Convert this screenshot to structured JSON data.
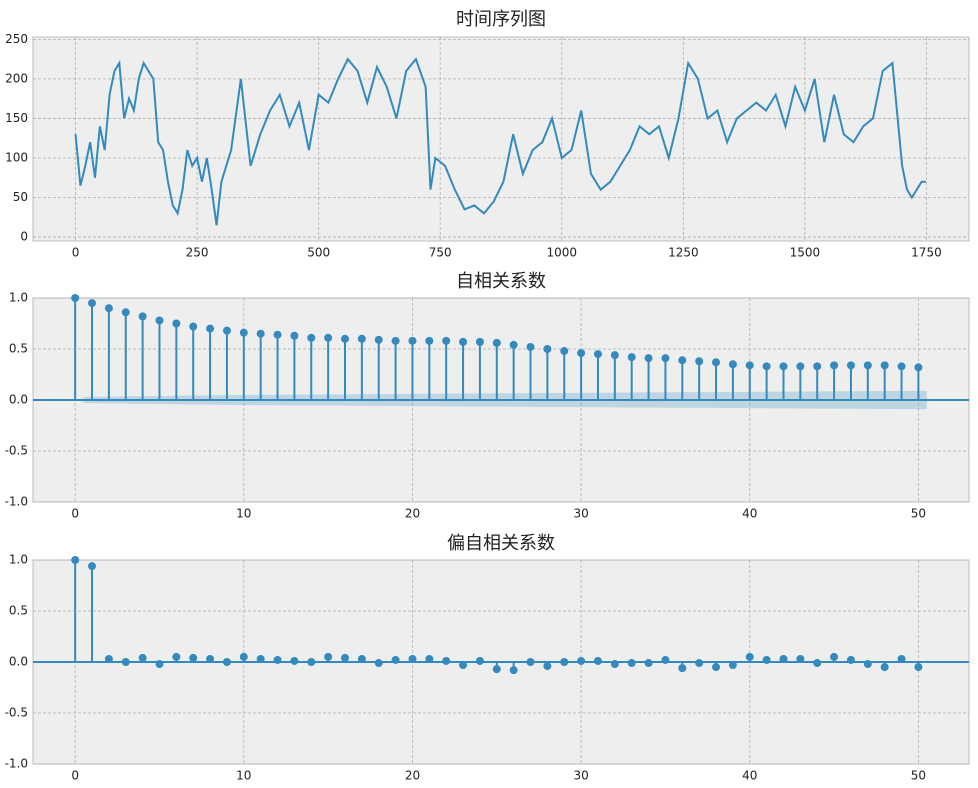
{
  "chart_data": [
    {
      "type": "line",
      "title": "时间序列图",
      "color": "#348abd",
      "grid": true,
      "x": [
        0,
        10,
        20,
        30,
        40,
        50,
        60,
        70,
        80,
        90,
        100,
        110,
        120,
        130,
        140,
        150,
        160,
        170,
        180,
        190,
        200,
        210,
        220,
        230,
        240,
        250,
        260,
        270,
        280,
        290,
        300,
        320,
        340,
        360,
        380,
        400,
        420,
        440,
        460,
        480,
        500,
        520,
        540,
        560,
        580,
        600,
        620,
        640,
        660,
        680,
        700,
        720,
        730,
        740,
        760,
        780,
        800,
        820,
        840,
        860,
        880,
        900,
        920,
        940,
        960,
        980,
        1000,
        1020,
        1040,
        1060,
        1080,
        1100,
        1120,
        1140,
        1160,
        1180,
        1200,
        1220,
        1240,
        1260,
        1280,
        1300,
        1320,
        1340,
        1360,
        1380,
        1400,
        1420,
        1440,
        1460,
        1480,
        1500,
        1520,
        1540,
        1560,
        1580,
        1600,
        1620,
        1640,
        1660,
        1680,
        1700,
        1710,
        1720,
        1740,
        1749
      ],
      "values": [
        130,
        65,
        90,
        120,
        75,
        140,
        110,
        180,
        210,
        220,
        150,
        175,
        160,
        200,
        220,
        210,
        200,
        120,
        110,
        70,
        40,
        30,
        60,
        110,
        90,
        100,
        70,
        100,
        60,
        15,
        70,
        110,
        200,
        90,
        130,
        160,
        180,
        140,
        170,
        110,
        180,
        170,
        200,
        225,
        210,
        170,
        215,
        190,
        150,
        210,
        225,
        190,
        60,
        100,
        90,
        60,
        35,
        40,
        30,
        45,
        70,
        130,
        80,
        110,
        120,
        150,
        100,
        110,
        160,
        80,
        60,
        70,
        90,
        110,
        140,
        130,
        140,
        100,
        150,
        220,
        200,
        150,
        160,
        120,
        150,
        160,
        170,
        160,
        180,
        140,
        190,
        160,
        200,
        120,
        180,
        130,
        120,
        140,
        150,
        210,
        220,
        90,
        60,
        50,
        70,
        70
      ],
      "xlim": [
        -87.5,
        1837.5
      ],
      "ylim": [
        -5,
        253
      ],
      "xticks": [
        0,
        250,
        500,
        750,
        1000,
        1250,
        1500,
        1750
      ],
      "yticks": [
        0,
        50,
        100,
        150,
        200,
        250
      ]
    },
    {
      "type": "stem",
      "title": "自相关系数",
      "color": "#348abd",
      "grid": true,
      "x": [
        0,
        1,
        2,
        3,
        4,
        5,
        6,
        7,
        8,
        9,
        10,
        11,
        12,
        13,
        14,
        15,
        16,
        17,
        18,
        19,
        20,
        21,
        22,
        23,
        24,
        25,
        26,
        27,
        28,
        29,
        30,
        31,
        32,
        33,
        34,
        35,
        36,
        37,
        38,
        39,
        40,
        41,
        42,
        43,
        44,
        45,
        46,
        47,
        48,
        49,
        50
      ],
      "values": [
        1.0,
        0.95,
        0.9,
        0.86,
        0.82,
        0.78,
        0.75,
        0.72,
        0.7,
        0.68,
        0.66,
        0.65,
        0.64,
        0.63,
        0.61,
        0.61,
        0.6,
        0.6,
        0.59,
        0.58,
        0.58,
        0.58,
        0.58,
        0.57,
        0.57,
        0.56,
        0.54,
        0.52,
        0.5,
        0.48,
        0.46,
        0.45,
        0.44,
        0.42,
        0.41,
        0.41,
        0.39,
        0.38,
        0.37,
        0.35,
        0.34,
        0.33,
        0.33,
        0.33,
        0.33,
        0.34,
        0.34,
        0.34,
        0.34,
        0.33,
        0.32
      ],
      "band_x": [
        0.5,
        10,
        20,
        30,
        40,
        50.5
      ],
      "band_upper": [
        0.03,
        0.05,
        0.06,
        0.07,
        0.08,
        0.09
      ],
      "band_lower": [
        -0.03,
        -0.05,
        -0.06,
        -0.07,
        -0.08,
        -0.09
      ],
      "xlim": [
        -2.5,
        53
      ],
      "ylim": [
        -1,
        1
      ],
      "xticks": [
        0,
        10,
        20,
        30,
        40,
        50
      ],
      "yticks": [
        {
          "value": 1,
          "label": "1.0"
        },
        {
          "value": 0.5,
          "label": "0.5"
        },
        {
          "value": 0,
          "label": "0.0"
        },
        {
          "value": -0.5,
          "label": "-0.5"
        },
        {
          "value": -1,
          "label": "-1.0"
        }
      ]
    },
    {
      "type": "stem",
      "title": "偏自相关系数",
      "color": "#348abd",
      "grid": true,
      "x": [
        0,
        1,
        2,
        3,
        4,
        5,
        6,
        7,
        8,
        9,
        10,
        11,
        12,
        13,
        14,
        15,
        16,
        17,
        18,
        19,
        20,
        21,
        22,
        23,
        24,
        25,
        26,
        27,
        28,
        29,
        30,
        31,
        32,
        33,
        34,
        35,
        36,
        37,
        38,
        39,
        40,
        41,
        42,
        43,
        44,
        45,
        46,
        47,
        48,
        49,
        50
      ],
      "values": [
        1.0,
        0.94,
        0.03,
        0.0,
        0.04,
        -0.02,
        0.05,
        0.04,
        0.03,
        0.0,
        0.05,
        0.03,
        0.02,
        0.01,
        0.0,
        0.05,
        0.04,
        0.03,
        -0.01,
        0.02,
        0.03,
        0.03,
        0.01,
        -0.03,
        0.01,
        -0.07,
        -0.08,
        0.0,
        -0.04,
        0.0,
        0.01,
        0.01,
        -0.02,
        -0.01,
        -0.01,
        0.02,
        -0.06,
        -0.01,
        -0.05,
        -0.03,
        0.05,
        0.02,
        0.03,
        0.03,
        -0.01,
        0.05,
        0.02,
        -0.02,
        -0.05,
        0.03,
        -0.05
      ],
      "xlim": [
        -2.5,
        53
      ],
      "ylim": [
        -1,
        1
      ],
      "xticks": [
        0,
        10,
        20,
        30,
        40,
        50
      ],
      "yticks": [
        {
          "value": 1,
          "label": "1.0"
        },
        {
          "value": 0.5,
          "label": "0.5"
        },
        {
          "value": 0,
          "label": "0.0"
        },
        {
          "value": -0.5,
          "label": "-0.5"
        },
        {
          "value": -1,
          "label": "-1.0"
        }
      ]
    }
  ]
}
